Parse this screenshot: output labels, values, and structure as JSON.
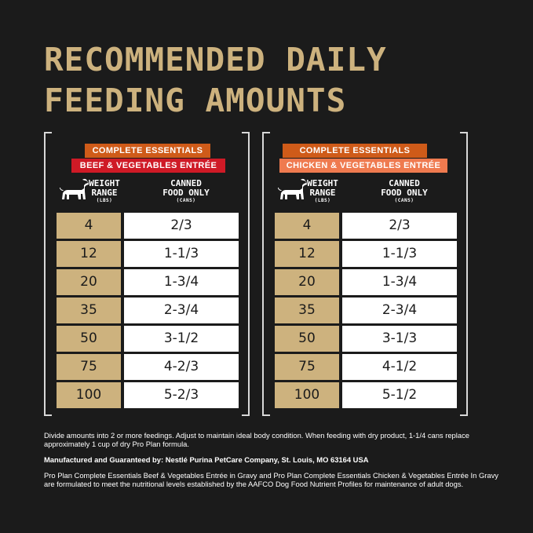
{
  "title": {
    "line1": "RECOMMENDED DAILY",
    "line2": "FEEDING AMOUNTS"
  },
  "headers": {
    "weight": "WEIGHT",
    "range": "RANGE",
    "weight_unit": "(LBS)",
    "canned": "CANNED",
    "food_only": "FOOD ONLY",
    "canned_unit": "(CANS)"
  },
  "panels": [
    {
      "line": "COMPLETE ESSENTIALS",
      "product": "BEEF & VEGETABLES ENTRÉE",
      "rows": [
        {
          "weight": "4",
          "cans": "2/3"
        },
        {
          "weight": "12",
          "cans": "1-1/3"
        },
        {
          "weight": "20",
          "cans": "1-3/4"
        },
        {
          "weight": "35",
          "cans": "2-3/4"
        },
        {
          "weight": "50",
          "cans": "3-1/2"
        },
        {
          "weight": "75",
          "cans": "4-2/3"
        },
        {
          "weight": "100",
          "cans": "5-2/3"
        }
      ]
    },
    {
      "line": "COMPLETE ESSENTIALS",
      "product": "CHICKEN & VEGETABLES ENTRÉE",
      "rows": [
        {
          "weight": "4",
          "cans": "2/3"
        },
        {
          "weight": "12",
          "cans": "1-1/3"
        },
        {
          "weight": "20",
          "cans": "1-3/4"
        },
        {
          "weight": "35",
          "cans": "2-3/4"
        },
        {
          "weight": "50",
          "cans": "3-1/3"
        },
        {
          "weight": "75",
          "cans": "4-1/2"
        },
        {
          "weight": "100",
          "cans": "5-1/2"
        }
      ]
    }
  ],
  "notes": {
    "feeding": "Divide amounts into 2 or more feedings. Adjust to maintain ideal body condition. When feeding with dry product, 1-1/4 cans replace approximately 1 cup of dry Pro Plan formula.",
    "manufacturer": "Manufactured and Guaranteed by: Nestlé Purina PetCare Company, St. Louis, MO 63164 USA",
    "aafco": "Pro Plan Complete Essentials Beef & Vegetables Entrée in Gravy and Pro Plan Complete Essentials Chicken & Vegetables Entrée In Gravy are formulated to meet the nutritional levels established by the AAFCO Dog Food Nutrient Profiles for maintenance of adult dogs."
  },
  "colors": {
    "background": "#1b1b1b",
    "gold": "#cdb27e",
    "orange_badge": "#cf5b19",
    "red_badge": "#cf1a26",
    "salmon_badge": "#ef7a4f"
  },
  "icons": [
    "dog-icon"
  ]
}
